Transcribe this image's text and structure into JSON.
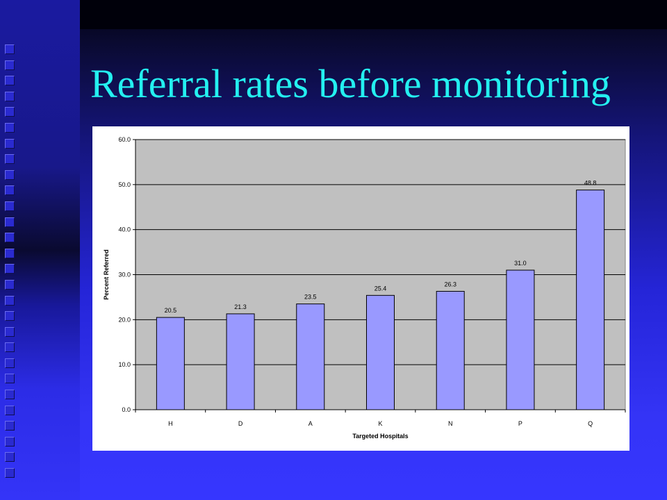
{
  "slide": {
    "title": "Referral rates before monitoring"
  },
  "colors": {
    "title": "#24f0f0",
    "bar_fill": "#9999ff",
    "plot_bg": "#c0c0c0",
    "background": "#3333ff"
  },
  "chart_data": {
    "type": "bar",
    "title": "",
    "xlabel": "Targeted Hospitals",
    "ylabel": "Percent Referred",
    "categories": [
      "H",
      "D",
      "A",
      "K",
      "N",
      "P",
      "Q"
    ],
    "values": [
      20.5,
      21.3,
      23.5,
      25.4,
      26.3,
      31.0,
      48.8
    ],
    "data_labels": [
      "20.5",
      "21.3",
      "23.5",
      "25.4",
      "26.3",
      "31.0",
      "48.8"
    ],
    "ylim": [
      0,
      60
    ],
    "yticks": [
      "0.0",
      "10.0",
      "20.0",
      "30.0",
      "40.0",
      "50.0",
      "60.0"
    ],
    "grid": true,
    "legend": "none"
  }
}
